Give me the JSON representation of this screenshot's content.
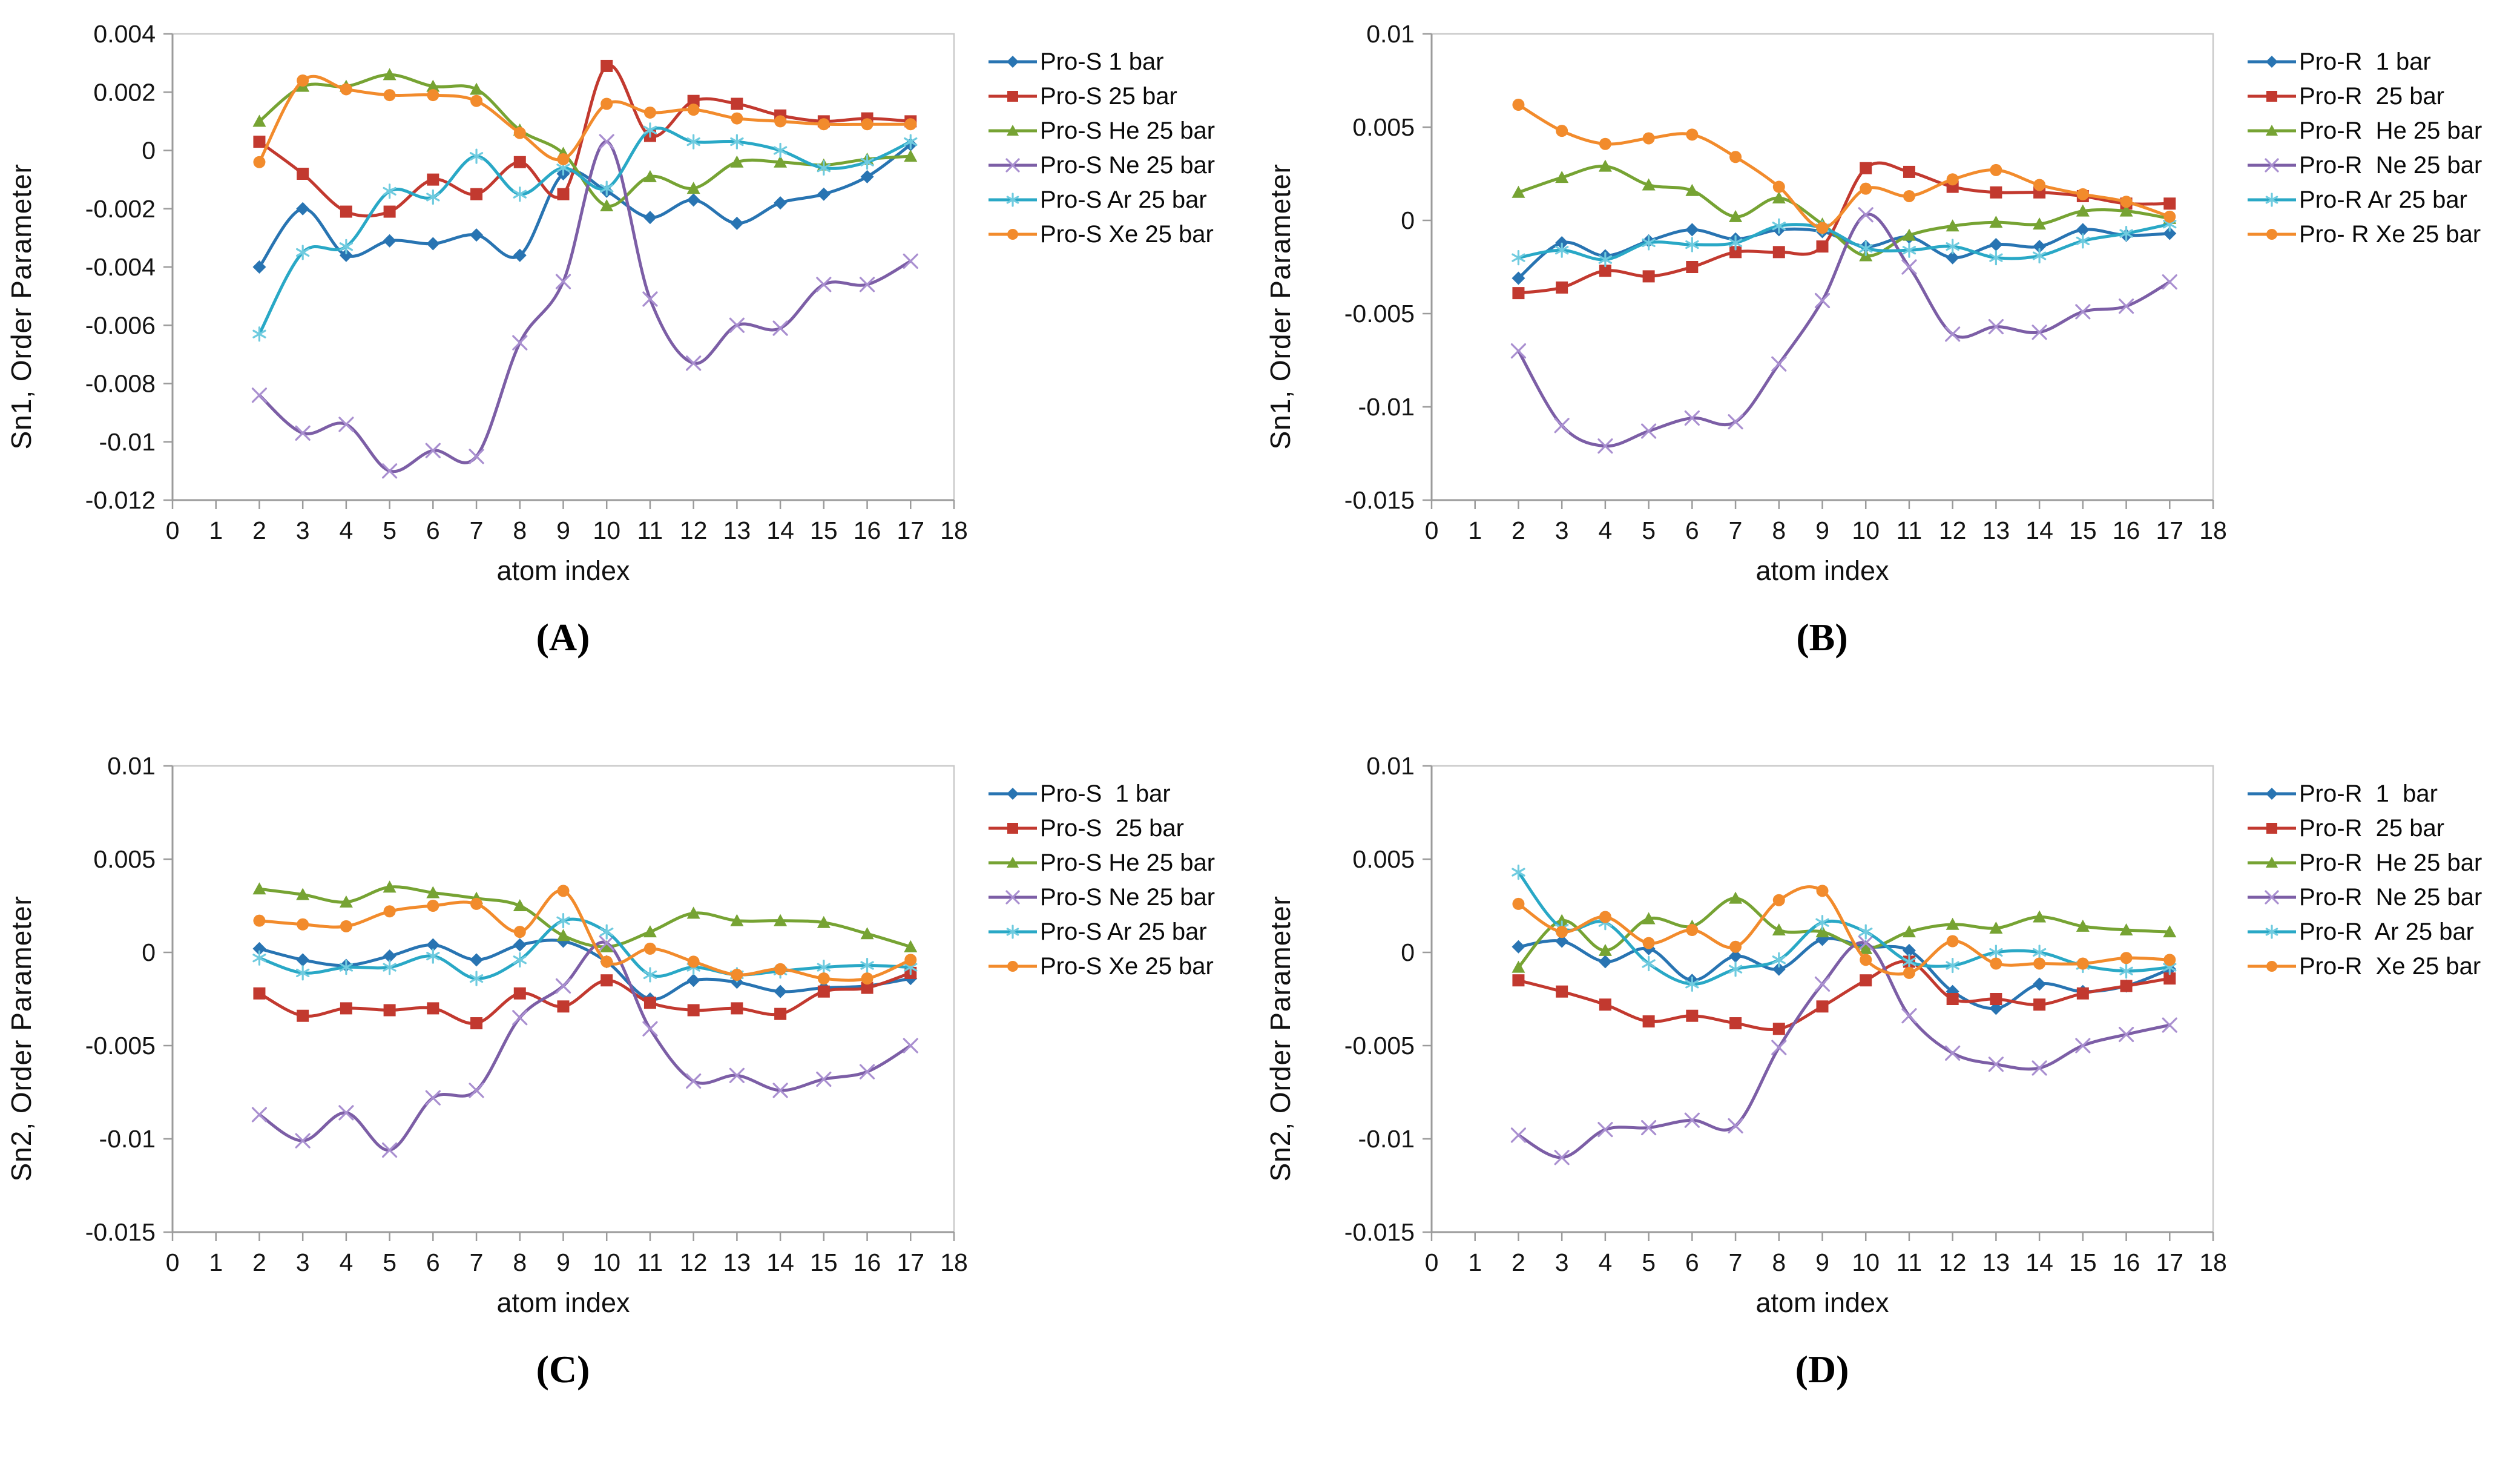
{
  "chart_data": [
    {
      "type": "line",
      "title": "(A)",
      "xlabel": "atom index",
      "ylabel": "Sn1, Order Parameter",
      "x": [
        2,
        3,
        4,
        5,
        6,
        7,
        8,
        9,
        10,
        11,
        12,
        13,
        14,
        15,
        16,
        17
      ],
      "xlim": [
        0,
        18
      ],
      "ylim": [
        -0.012,
        0.004
      ],
      "xticks": [
        0,
        1,
        2,
        3,
        4,
        5,
        6,
        7,
        8,
        9,
        10,
        11,
        12,
        13,
        14,
        15,
        16,
        17,
        18
      ],
      "yticks": [
        0.004,
        0.002,
        0,
        -0.002,
        -0.004,
        -0.006,
        -0.008,
        -0.01,
        -0.012
      ],
      "grid": false,
      "legend_position": "right",
      "series": [
        {
          "name": "Pro-S 1 bar",
          "color": "#2874b2",
          "marker": "diamond",
          "values": [
            -0.004,
            -0.002,
            -0.0036,
            -0.0031,
            -0.0032,
            -0.0029,
            -0.0036,
            -0.0008,
            -0.0014,
            -0.0023,
            -0.0017,
            -0.0025,
            -0.0018,
            -0.0015,
            -0.0009,
            0.0002
          ]
        },
        {
          "name": "Pro-S 25 bar",
          "color": "#c2392f",
          "marker": "square",
          "values": [
            0.0003,
            -0.0008,
            -0.0021,
            -0.0021,
            -0.001,
            -0.0015,
            -0.0004,
            -0.0015,
            0.0029,
            0.0005,
            0.0017,
            0.0016,
            0.0012,
            0.001,
            0.0011,
            0.001
          ]
        },
        {
          "name": "Pro-S He 25 bar",
          "color": "#76a333",
          "marker": "triangle",
          "values": [
            0.001,
            0.0022,
            0.0022,
            0.0026,
            0.0022,
            0.0021,
            0.0007,
            -0.0001,
            -0.0019,
            -0.0009,
            -0.0013,
            -0.0004,
            -0.0004,
            -0.0005,
            -0.0003,
            -0.0002
          ]
        },
        {
          "name": "Pro-S Ne 25 bar",
          "color": "#7c5ea6",
          "marker": "x",
          "marker_color": "#a98fd0",
          "values": [
            -0.0084,
            -0.0097,
            -0.0094,
            -0.011,
            -0.0103,
            -0.0105,
            -0.0066,
            -0.0045,
            0.0003,
            -0.0051,
            -0.0073,
            -0.006,
            -0.0061,
            -0.0046,
            -0.0046,
            -0.0038
          ]
        },
        {
          "name": "Pro-S Ar 25 bar",
          "color": "#29a8c6",
          "marker": "asterisk",
          "marker_color": "#6fcbdf",
          "values": [
            -0.0063,
            -0.0035,
            -0.0033,
            -0.0014,
            -0.0016,
            -0.0002,
            -0.0015,
            -0.0006,
            -0.0013,
            0.0007,
            0.0003,
            0.0003,
            0.0,
            -0.0006,
            -0.0004,
            0.0003
          ]
        },
        {
          "name": "Pro-S Xe 25 bar",
          "color": "#f28b2c",
          "marker": "circle",
          "values": [
            -0.0004,
            0.0024,
            0.0021,
            0.0019,
            0.0019,
            0.0017,
            0.0006,
            -0.0003,
            0.0016,
            0.0013,
            0.0014,
            0.0011,
            0.001,
            0.0009,
            0.0009,
            0.0009
          ]
        }
      ]
    },
    {
      "type": "line",
      "title": "(B)",
      "xlabel": "atom index",
      "ylabel": "Sn1, Order Parameter",
      "x": [
        2,
        3,
        4,
        5,
        6,
        7,
        8,
        9,
        10,
        11,
        12,
        13,
        14,
        15,
        16,
        17
      ],
      "xlim": [
        0,
        18
      ],
      "ylim": [
        -0.015,
        0.01
      ],
      "xticks": [
        0,
        1,
        2,
        3,
        4,
        5,
        6,
        7,
        8,
        9,
        10,
        11,
        12,
        13,
        14,
        15,
        16,
        17,
        18
      ],
      "yticks": [
        0.01,
        0.005,
        0,
        -0.005,
        -0.01,
        -0.015
      ],
      "grid": false,
      "legend_position": "right",
      "series": [
        {
          "name": "Pro-R  1 bar",
          "color": "#2874b2",
          "marker": "diamond",
          "values": [
            -0.0031,
            -0.0012,
            -0.0019,
            -0.0011,
            -0.0005,
            -0.001,
            -0.0005,
            -0.0006,
            -0.0014,
            -0.0009,
            -0.002,
            -0.0013,
            -0.0014,
            -0.0005,
            -0.0008,
            -0.0007
          ]
        },
        {
          "name": "Pro-R  25 bar",
          "color": "#c2392f",
          "marker": "square",
          "values": [
            -0.0039,
            -0.0036,
            -0.0027,
            -0.003,
            -0.0025,
            -0.0017,
            -0.0017,
            -0.0014,
            0.0028,
            0.0026,
            0.0018,
            0.0015,
            0.0015,
            0.0013,
            0.0009,
            0.0009
          ]
        },
        {
          "name": "Pro-R  He 25 bar",
          "color": "#76a333",
          "marker": "triangle",
          "values": [
            0.0015,
            0.0023,
            0.0029,
            0.0019,
            0.0016,
            0.0002,
            0.0012,
            -0.0002,
            -0.0019,
            -0.0008,
            -0.0003,
            -0.0001,
            -0.0002,
            0.0005,
            0.0005,
            0.0001
          ]
        },
        {
          "name": "Pro-R  Ne 25 bar",
          "color": "#7c5ea6",
          "marker": "x",
          "marker_color": "#a98fd0",
          "values": [
            -0.007,
            -0.011,
            -0.0121,
            -0.0113,
            -0.0106,
            -0.0108,
            -0.0077,
            -0.0043,
            0.0003,
            -0.0025,
            -0.0061,
            -0.0057,
            -0.006,
            -0.0049,
            -0.0046,
            -0.0033
          ]
        },
        {
          "name": "Pro-R Ar 25 bar",
          "color": "#29a8c6",
          "marker": "asterisk",
          "marker_color": "#6fcbdf",
          "values": [
            -0.002,
            -0.0016,
            -0.0021,
            -0.0012,
            -0.0013,
            -0.0012,
            -0.0003,
            -0.0004,
            -0.0015,
            -0.0016,
            -0.0014,
            -0.002,
            -0.0019,
            -0.0011,
            -0.0007,
            -0.0002
          ]
        },
        {
          "name": "Pro- R Xe 25 bar",
          "color": "#f28b2c",
          "marker": "circle",
          "values": [
            0.0062,
            0.0048,
            0.0041,
            0.0044,
            0.0046,
            0.0034,
            0.0018,
            -0.0004,
            0.0017,
            0.0013,
            0.0022,
            0.0027,
            0.0019,
            0.0014,
            0.001,
            0.0002
          ]
        }
      ]
    },
    {
      "type": "line",
      "title": "(C)",
      "xlabel": "atom index",
      "ylabel": "Sn2, Order Parameter",
      "x": [
        2,
        3,
        4,
        5,
        6,
        7,
        8,
        9,
        10,
        11,
        12,
        13,
        14,
        15,
        16,
        17
      ],
      "xlim": [
        0,
        18
      ],
      "ylim": [
        -0.015,
        0.01
      ],
      "xticks": [
        0,
        1,
        2,
        3,
        4,
        5,
        6,
        7,
        8,
        9,
        10,
        11,
        12,
        13,
        14,
        15,
        16,
        17,
        18
      ],
      "yticks": [
        0.01,
        0.005,
        0,
        -0.005,
        -0.01,
        -0.015
      ],
      "grid": false,
      "legend_position": "right",
      "series": [
        {
          "name": "Pro-S  1 bar",
          "color": "#2874b2",
          "marker": "diamond",
          "values": [
            0.0002,
            -0.0004,
            -0.0007,
            -0.0002,
            0.0004,
            -0.0004,
            0.0004,
            0.0006,
            -0.0005,
            -0.0025,
            -0.0015,
            -0.0016,
            -0.0021,
            -0.0019,
            -0.0018,
            -0.0014
          ]
        },
        {
          "name": "Pro-S  25 bar",
          "color": "#c2392f",
          "marker": "square",
          "values": [
            -0.0022,
            -0.0034,
            -0.003,
            -0.0031,
            -0.003,
            -0.0038,
            -0.0022,
            -0.0029,
            -0.0015,
            -0.0027,
            -0.0031,
            -0.003,
            -0.0033,
            -0.0021,
            -0.0019,
            -0.0011
          ]
        },
        {
          "name": "Pro-S He 25 bar",
          "color": "#76a333",
          "marker": "triangle",
          "values": [
            0.0034,
            0.0031,
            0.0027,
            0.0035,
            0.0032,
            0.0029,
            0.0025,
            0.0009,
            0.0003,
            0.0011,
            0.0021,
            0.0017,
            0.0017,
            0.0016,
            0.001,
            0.0003
          ]
        },
        {
          "name": "Pro-S Ne 25 bar",
          "color": "#7c5ea6",
          "marker": "x",
          "marker_color": "#a98fd0",
          "values": [
            -0.0087,
            -0.0101,
            -0.0086,
            -0.0106,
            -0.0078,
            -0.0074,
            -0.0035,
            -0.0018,
            0.0005,
            -0.0041,
            -0.0069,
            -0.0066,
            -0.0074,
            -0.0068,
            -0.0064,
            -0.005
          ]
        },
        {
          "name": "Pro-S Ar 25 bar",
          "color": "#29a8c6",
          "marker": "asterisk",
          "marker_color": "#6fcbdf",
          "values": [
            -0.0003,
            -0.0011,
            -0.0008,
            -0.0008,
            -0.0002,
            -0.0014,
            -0.0004,
            0.0017,
            0.0011,
            -0.0012,
            -0.0008,
            -0.0012,
            -0.001,
            -0.0008,
            -0.0007,
            -0.0008
          ]
        },
        {
          "name": "Pro-S Xe 25 bar",
          "color": "#f28b2c",
          "marker": "circle",
          "values": [
            0.0017,
            0.0015,
            0.0014,
            0.0022,
            0.0025,
            0.0026,
            0.0011,
            0.0033,
            -0.0005,
            0.0002,
            -0.0005,
            -0.0012,
            -0.0009,
            -0.0014,
            -0.0014,
            -0.0004
          ]
        }
      ]
    },
    {
      "type": "line",
      "title": "(D)",
      "xlabel": "atom index",
      "ylabel": "Sn2, Order Parameter",
      "x": [
        2,
        3,
        4,
        5,
        6,
        7,
        8,
        9,
        10,
        11,
        12,
        13,
        14,
        15,
        16,
        17
      ],
      "xlim": [
        0,
        18
      ],
      "ylim": [
        -0.015,
        0.01
      ],
      "xticks": [
        0,
        1,
        2,
        3,
        4,
        5,
        6,
        7,
        8,
        9,
        10,
        11,
        12,
        13,
        14,
        15,
        16,
        17,
        18
      ],
      "yticks": [
        0.01,
        0.005,
        0,
        -0.005,
        -0.01,
        -0.015
      ],
      "grid": false,
      "legend_position": "right",
      "series": [
        {
          "name": "Pro-R  1  bar",
          "color": "#2874b2",
          "marker": "diamond",
          "values": [
            0.0003,
            0.0006,
            -0.0005,
            0.0002,
            -0.0015,
            -0.0002,
            -0.0009,
            0.0007,
            0.0003,
            0.0001,
            -0.0021,
            -0.003,
            -0.0017,
            -0.0021,
            -0.0018,
            -0.0009
          ]
        },
        {
          "name": "Pro-R  25 bar",
          "color": "#c2392f",
          "marker": "square",
          "values": [
            -0.0015,
            -0.0021,
            -0.0028,
            -0.0037,
            -0.0034,
            -0.0038,
            -0.0041,
            -0.0029,
            -0.0015,
            -0.0005,
            -0.0025,
            -0.0025,
            -0.0028,
            -0.0022,
            -0.0018,
            -0.0014
          ]
        },
        {
          "name": "Pro-R  He 25 bar",
          "color": "#76a333",
          "marker": "triangle",
          "values": [
            -0.0008,
            0.0017,
            0.0001,
            0.0018,
            0.0014,
            0.0029,
            0.0012,
            0.0011,
            0.0002,
            0.0011,
            0.0015,
            0.0013,
            0.0019,
            0.0014,
            0.0012,
            0.0011
          ]
        },
        {
          "name": "Pro-R  Ne 25 bar",
          "color": "#7c5ea6",
          "marker": "x",
          "marker_color": "#a98fd0",
          "values": [
            -0.0098,
            -0.011,
            -0.0095,
            -0.0094,
            -0.009,
            -0.0093,
            -0.0051,
            -0.0017,
            0.0005,
            -0.0034,
            -0.0054,
            -0.006,
            -0.0062,
            -0.005,
            -0.0044,
            -0.0039
          ]
        },
        {
          "name": "Pro-R  Ar 25 bar",
          "color": "#29a8c6",
          "marker": "asterisk",
          "marker_color": "#6fcbdf",
          "values": [
            0.0043,
            0.0013,
            0.0016,
            -0.0006,
            -0.0017,
            -0.0009,
            -0.0004,
            0.0016,
            0.0011,
            -0.0005,
            -0.0007,
            0.0,
            0.0,
            -0.0007,
            -0.001,
            -0.0008
          ]
        },
        {
          "name": "Pro-R  Xe 25 bar",
          "color": "#f28b2c",
          "marker": "circle",
          "values": [
            0.0026,
            0.0011,
            0.0019,
            0.0005,
            0.0012,
            0.0003,
            0.0028,
            0.0033,
            -0.0004,
            -0.0011,
            0.0006,
            -0.0006,
            -0.0006,
            -0.0006,
            -0.0003,
            -0.0004
          ]
        }
      ]
    }
  ],
  "style": {
    "plot_border_color": "#c9c9c9",
    "axis_color": "#9b9b9b",
    "background": "#ffffff"
  }
}
